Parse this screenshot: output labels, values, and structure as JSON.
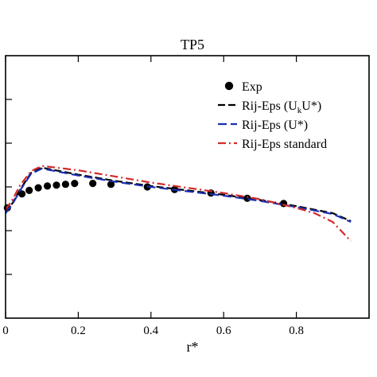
{
  "chart_data": {
    "type": "line",
    "title": "TP5",
    "xlabel": "r*",
    "ylabel": "",
    "xlim": [
      0,
      1.0
    ],
    "ylim": [
      0,
      1.5
    ],
    "xticks": [
      0,
      0.2,
      0.4,
      0.6,
      0.8
    ],
    "xtick_labels": [
      "0",
      "0.2",
      "0.4",
      "0.6",
      "0.8"
    ],
    "yticks": [
      0.25,
      0.5,
      0.75,
      1.0,
      1.25
    ],
    "grid": false,
    "legend_position": "top-right",
    "series": [
      {
        "name": "Exp",
        "kind": "scatter",
        "color": "#000000",
        "x": [
          0.005,
          0.045,
          0.065,
          0.09,
          0.115,
          0.14,
          0.165,
          0.19,
          0.24,
          0.29,
          0.39,
          0.465,
          0.565,
          0.665,
          0.765
        ],
        "y": [
          0.63,
          0.71,
          0.73,
          0.745,
          0.755,
          0.76,
          0.765,
          0.77,
          0.77,
          0.765,
          0.75,
          0.735,
          0.715,
          0.685,
          0.655
        ]
      },
      {
        "name": "Rij-Eps (U_kU*)",
        "kind": "line",
        "color": "#000000",
        "dash": "dashed",
        "x": [
          0.0,
          0.02,
          0.04,
          0.07,
          0.1,
          0.2,
          0.3,
          0.4,
          0.5,
          0.6,
          0.7,
          0.8,
          0.9,
          0.95
        ],
        "y": [
          0.6,
          0.66,
          0.735,
          0.83,
          0.86,
          0.82,
          0.785,
          0.755,
          0.73,
          0.705,
          0.675,
          0.64,
          0.6,
          0.555
        ]
      },
      {
        "name": "Rij-Eps (U*)",
        "kind": "line",
        "color": "#1c2fb0",
        "dash": "long-dash",
        "x": [
          0.0,
          0.02,
          0.04,
          0.07,
          0.1,
          0.2,
          0.3,
          0.4,
          0.5,
          0.6,
          0.7,
          0.8,
          0.9,
          0.95
        ],
        "y": [
          0.6,
          0.655,
          0.73,
          0.825,
          0.855,
          0.815,
          0.78,
          0.75,
          0.725,
          0.7,
          0.67,
          0.635,
          0.595,
          0.55
        ]
      },
      {
        "name": "Rij-Eps standard",
        "kind": "line",
        "color": "#d42a2a",
        "dash": "dash-dot",
        "x": [
          0.0,
          0.02,
          0.04,
          0.07,
          0.1,
          0.2,
          0.3,
          0.4,
          0.5,
          0.6,
          0.7,
          0.75,
          0.8,
          0.85,
          0.9,
          0.95
        ],
        "y": [
          0.62,
          0.68,
          0.76,
          0.84,
          0.87,
          0.845,
          0.81,
          0.775,
          0.745,
          0.715,
          0.68,
          0.655,
          0.63,
          0.6,
          0.55,
          0.44
        ]
      }
    ]
  }
}
